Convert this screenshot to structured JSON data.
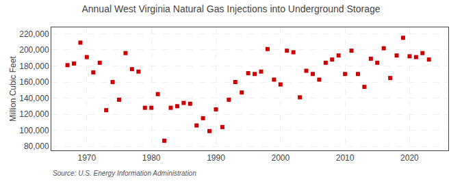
{
  "chart_data": {
    "type": "scatter",
    "title": "Annual West Virginia Natural Gas Injections into Underground Storage",
    "ylabel": "Million Cubic Feet",
    "annotations": [
      "Source: U.S. Energy Information Administration"
    ],
    "color": "#cc0000",
    "marker": "square",
    "grid": true,
    "xlim": [
      1964.5,
      2026
    ],
    "xticks": [
      1970,
      1980,
      1990,
      2000,
      2010,
      2020
    ],
    "ylim": [
      75000,
      228000
    ],
    "yticks": [
      {
        "value": 80000,
        "label": "80,000"
      },
      {
        "value": 100000,
        "label": "100,000"
      },
      {
        "value": 120000,
        "label": "120,000"
      },
      {
        "value": 140000,
        "label": "140,000"
      },
      {
        "value": 160000,
        "label": "160,000"
      },
      {
        "value": 180000,
        "label": "180,000"
      },
      {
        "value": 200000,
        "label": "200,000"
      },
      {
        "value": 220000,
        "label": "220,000"
      }
    ],
    "x": [
      1967,
      1968,
      1969,
      1970,
      1971,
      1972,
      1973,
      1974,
      1975,
      1976,
      1977,
      1978,
      1979,
      1980,
      1981,
      1982,
      1983,
      1984,
      1985,
      1986,
      1987,
      1988,
      1989,
      1990,
      1991,
      1992,
      1993,
      1994,
      1995,
      1996,
      1997,
      1998,
      1999,
      2000,
      2001,
      2002,
      2003,
      2004,
      2005,
      2006,
      2007,
      2008,
      2009,
      2010,
      2011,
      2012,
      2013,
      2014,
      2015,
      2016,
      2017,
      2018,
      2019,
      2020,
      2021,
      2022,
      2023
    ],
    "values": [
      181000,
      183000,
      209000,
      191000,
      172000,
      184000,
      125000,
      160000,
      138000,
      196000,
      176000,
      173000,
      128000,
      128000,
      145000,
      87000,
      128000,
      130000,
      134000,
      133000,
      106000,
      115000,
      99000,
      126000,
      104000,
      138000,
      160000,
      147000,
      171000,
      170000,
      173000,
      201000,
      163000,
      157000,
      199000,
      197000,
      141000,
      174000,
      170000,
      163000,
      184000,
      188000,
      193000,
      170000,
      199000,
      170000,
      154000,
      189000,
      184000,
      202000,
      165000,
      193000,
      215000,
      192000,
      191000,
      196000,
      188000
    ]
  }
}
